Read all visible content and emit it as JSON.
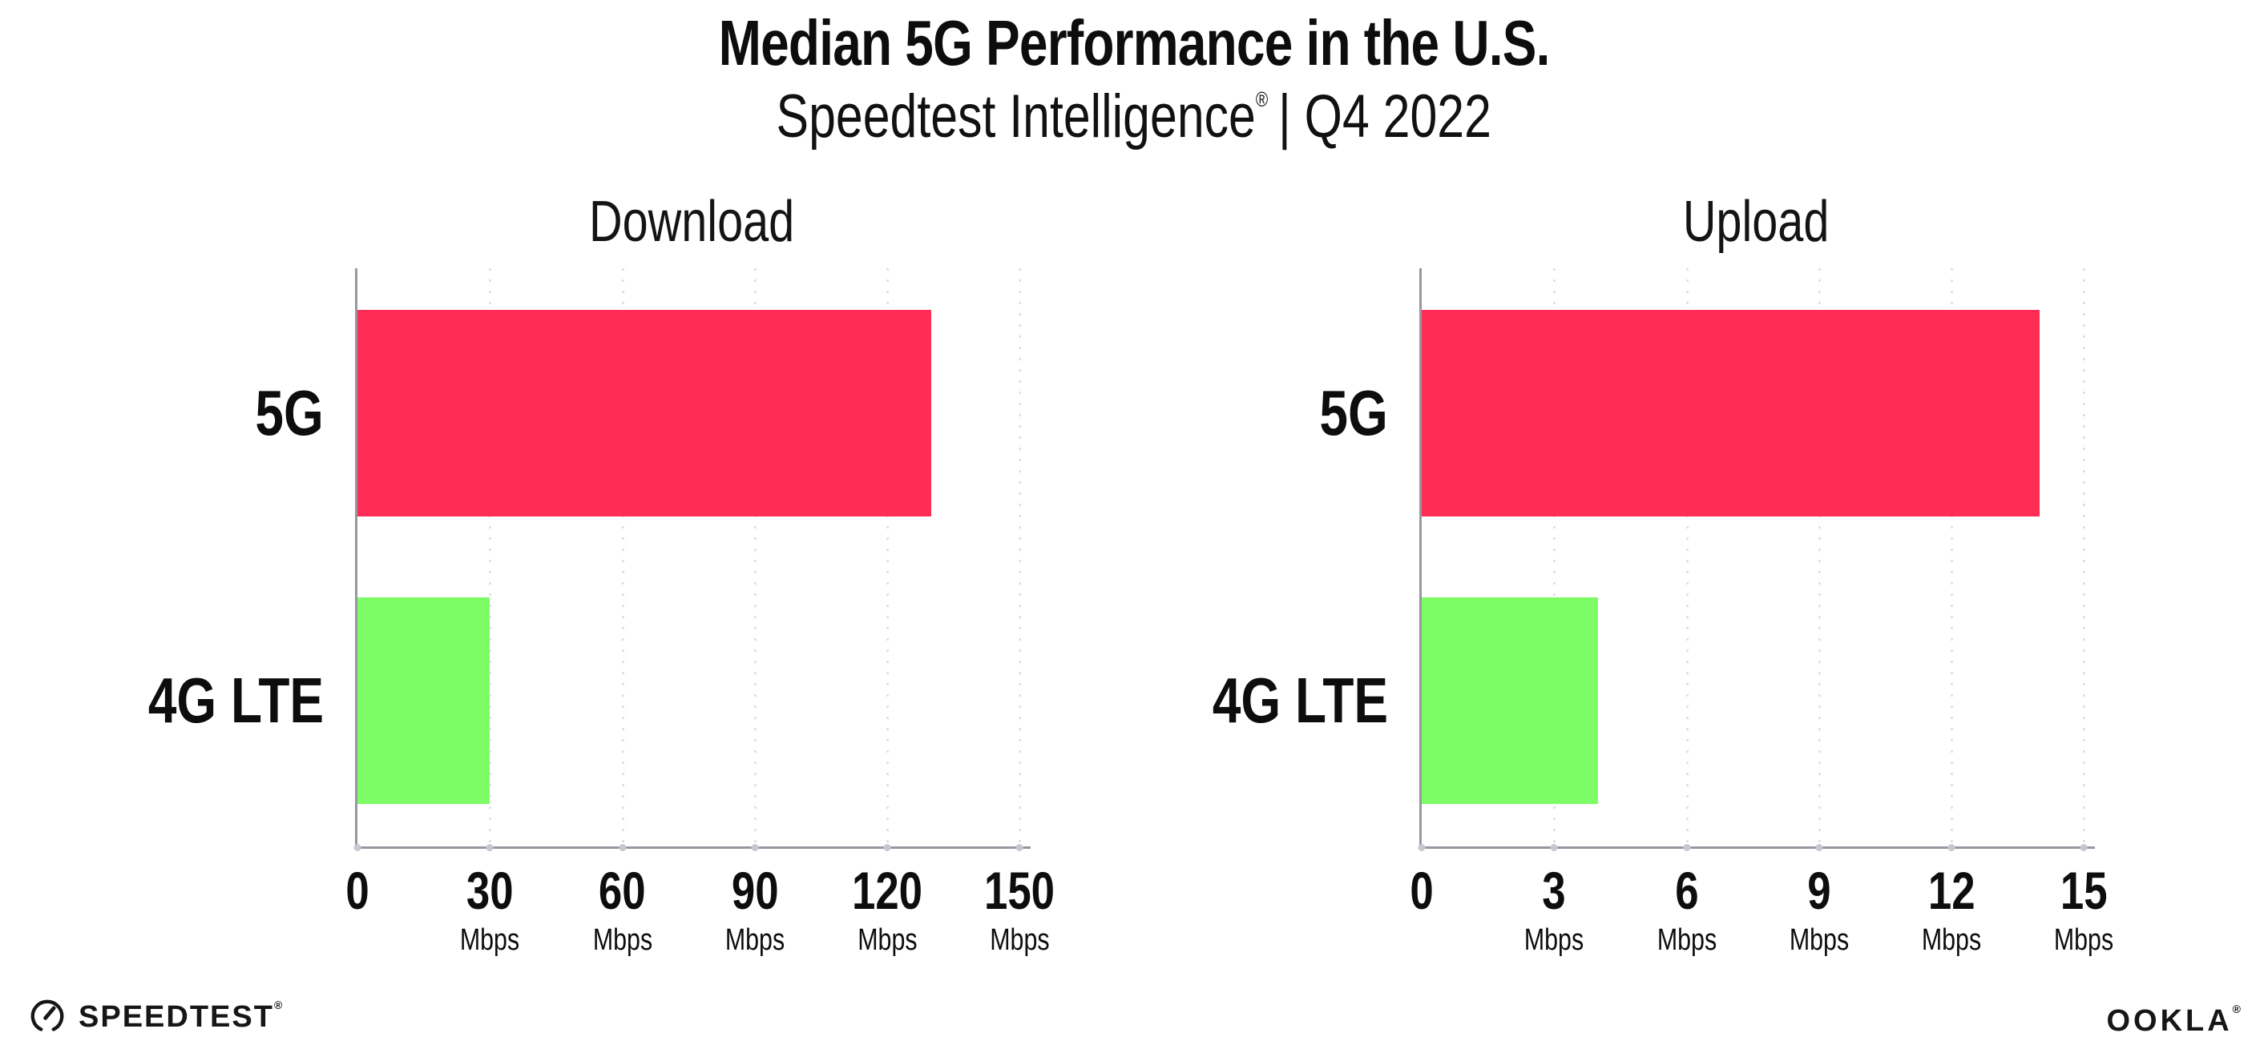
{
  "header": {
    "title": "Median 5G Performance in the U.S.",
    "subtitle_product": "Speedtest Intelligence",
    "subtitle_reg": "®",
    "subtitle_rest": "| Q4 2022"
  },
  "chart_data": [
    {
      "type": "bar",
      "orientation": "horizontal",
      "title": "Download",
      "categories": [
        "5G",
        "4G LTE"
      ],
      "values": [
        130,
        30
      ],
      "unit": "Mbps",
      "xlim": [
        0,
        150
      ],
      "xticks": [
        0,
        30,
        60,
        90,
        120,
        150
      ],
      "bar_colors": [
        "#FF2D55",
        "#7DFD65"
      ],
      "grid": "dotted-vertical",
      "legend": "none"
    },
    {
      "type": "bar",
      "orientation": "horizontal",
      "title": "Upload",
      "categories": [
        "5G",
        "4G LTE"
      ],
      "values": [
        14,
        4
      ],
      "unit": "Mbps",
      "xlim": [
        0,
        15
      ],
      "xticks": [
        0,
        3,
        6,
        9,
        12,
        15
      ],
      "bar_colors": [
        "#FF2D55",
        "#7DFD65"
      ],
      "grid": "dotted-vertical",
      "legend": "none"
    }
  ],
  "footer": {
    "speedtest_label": "SPEEDTEST",
    "speedtest_reg": "®",
    "ookla_label": "OOKLA",
    "ookla_reg": "®"
  },
  "colors": {
    "bar_5g": "#FF2D55",
    "bar_4g_lte": "#7DFD65",
    "axis": "#97979f",
    "gridline": "#e1e1ec",
    "text": "#0d0d0d",
    "background": "#ffffff"
  }
}
